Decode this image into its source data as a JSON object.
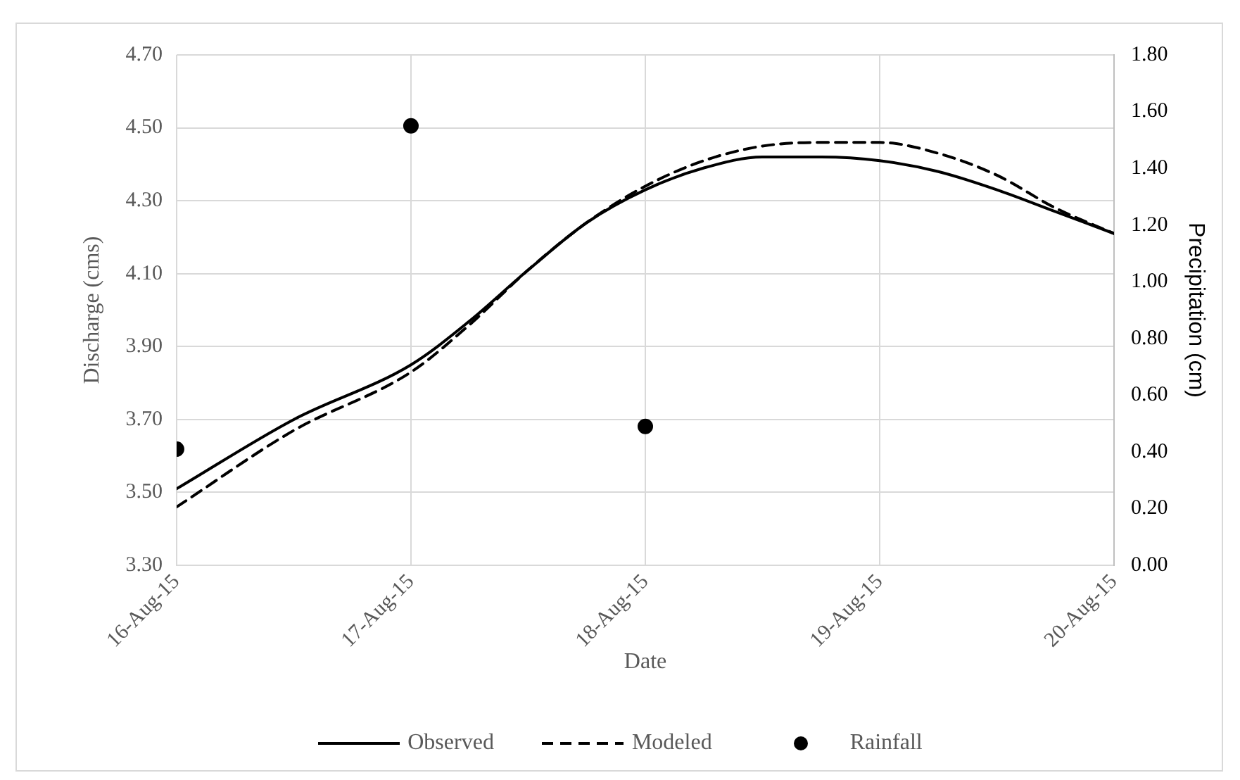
{
  "chart_data": {
    "type": "line",
    "xlabel": "Date",
    "ylabel": "Discharge (cms)",
    "y2label": "Precipitation (cm)",
    "xlim": [
      "--08-16",
      "--08-20"
    ],
    "xticks": [
      {
        "value": "--08-16",
        "label": "16-Aug-15"
      },
      {
        "value": "--08-17",
        "label": "17-Aug-15"
      },
      {
        "value": "--08-18",
        "label": "18-Aug-15"
      },
      {
        "value": "--08-19",
        "label": "19-Aug-15"
      },
      {
        "value": "--08-20",
        "label": "20-Aug-15"
      }
    ],
    "ylim": [
      3.3,
      4.7
    ],
    "yticks": [
      {
        "value": 3.3,
        "label": "3.30"
      },
      {
        "value": 3.5,
        "label": "3.50"
      },
      {
        "value": 3.7,
        "label": "3.70"
      },
      {
        "value": 3.9,
        "label": "3.90"
      },
      {
        "value": 4.1,
        "label": "4.10"
      },
      {
        "value": 4.3,
        "label": "4.30"
      },
      {
        "value": 4.5,
        "label": "4.50"
      },
      {
        "value": 4.7,
        "label": "4.70"
      }
    ],
    "y2lim": [
      0,
      1.8
    ],
    "y2ticks": [
      {
        "value": 0,
        "label": "0.00"
      },
      {
        "value": 0.2,
        "label": "0.20"
      },
      {
        "value": 0.4,
        "label": "0.40"
      },
      {
        "value": 0.6,
        "label": "0.60"
      },
      {
        "value": 0.8,
        "label": "0.80"
      },
      {
        "value": 1,
        "label": "1.00"
      },
      {
        "value": 1.2,
        "label": "1.20"
      },
      {
        "value": 1.4,
        "label": "1.40"
      },
      {
        "value": 1.6,
        "label": "1.60"
      },
      {
        "value": 1.8,
        "label": "1.80"
      }
    ],
    "grid": true,
    "legend": "bottom",
    "series": [
      {
        "name": "Observed",
        "color": "#000000",
        "line_style": "solid",
        "marker": "none",
        "x": [
          "--08-16",
          "--08-16T12:00",
          "--08-17",
          "--08-17T06:00",
          "--08-17T12:00",
          "--08-17T18:00",
          "--08-18",
          "--08-18T06:00",
          "--08-18T12:00",
          "--08-18T18:00",
          "--08-19",
          "--08-19T06:00",
          "--08-19T12:00",
          "--08-19T18:00",
          "--08-20"
        ],
        "values": [
          3.51,
          3.7,
          3.85,
          3.97,
          4.11,
          4.24,
          4.33,
          4.39,
          4.42,
          4.42,
          4.41,
          4.38,
          4.33,
          4.27,
          4.21
        ]
      },
      {
        "name": "Modeled",
        "color": "#000000",
        "line_style": "dashed",
        "marker": "none",
        "x": [
          "--08-16",
          "--08-16T12:00",
          "--08-17",
          "--08-17T06:00",
          "--08-17T12:00",
          "--08-17T18:00",
          "--08-18",
          "--08-18T06:00",
          "--08-18T12:00",
          "--08-18T18:00",
          "--08-19",
          "--08-19T06:00",
          "--08-19T12:00",
          "--08-19T18:00",
          "--08-20"
        ],
        "values": [
          3.46,
          3.67,
          3.83,
          3.96,
          4.11,
          4.24,
          4.34,
          4.41,
          4.45,
          4.46,
          4.46,
          4.43,
          4.37,
          4.28,
          4.21
        ]
      },
      {
        "name": "Rainfall",
        "type": "scatter",
        "axis": "y2",
        "color": "#000000",
        "marker": "circle",
        "x": [
          "--08-16",
          "--08-17",
          "--08-18"
        ],
        "values": [
          0.41,
          1.55,
          0.49
        ]
      }
    ]
  }
}
